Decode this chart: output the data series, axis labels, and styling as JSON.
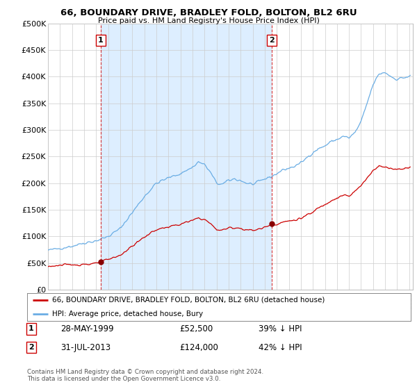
{
  "title": "66, BOUNDARY DRIVE, BRADLEY FOLD, BOLTON, BL2 6RU",
  "subtitle": "Price paid vs. HM Land Registry's House Price Index (HPI)",
  "legend_property": "66, BOUNDARY DRIVE, BRADLEY FOLD, BOLTON, BL2 6RU (detached house)",
  "legend_hpi": "HPI: Average price, detached house, Bury",
  "footer": "Contains HM Land Registry data © Crown copyright and database right 2024.\nThis data is licensed under the Open Government Licence v3.0.",
  "sales": [
    {
      "label": "1",
      "date": "28-MAY-1999",
      "price": 52500,
      "pct": "39% ↓ HPI",
      "x_year": 1999.38
    },
    {
      "label": "2",
      "date": "31-JUL-2013",
      "price": 124000,
      "pct": "42% ↓ HPI",
      "x_year": 2013.58
    }
  ],
  "property_color": "#cc0000",
  "hpi_color": "#6aade4",
  "shade_color": "#ddeeff",
  "sale_marker_color": "#880000",
  "vline_color": "#cc0000",
  "background_color": "#ffffff",
  "grid_color": "#cccccc",
  "ylim": [
    0,
    500000
  ],
  "xlim": [
    1995.0,
    2025.3
  ],
  "yticks": [
    0,
    50000,
    100000,
    150000,
    200000,
    250000,
    300000,
    350000,
    400000,
    450000,
    500000
  ],
  "ytick_labels": [
    "£0",
    "£50K",
    "£100K",
    "£150K",
    "£200K",
    "£250K",
    "£300K",
    "£350K",
    "£400K",
    "£450K",
    "£500K"
  ]
}
